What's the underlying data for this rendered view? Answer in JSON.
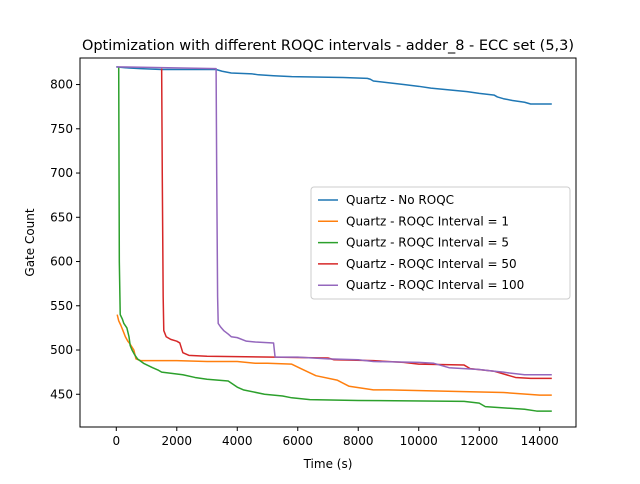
{
  "chart_data": {
    "type": "line",
    "title": "Optimization with different ROQC intervals - adder_8 - ECC set (5,3)",
    "xlabel": "Time (s)",
    "ylabel": "Gate Count",
    "xlim": [
      -1200,
      15200
    ],
    "ylim": [
      413,
      830
    ],
    "xticks": [
      0,
      2000,
      4000,
      6000,
      8000,
      10000,
      12000,
      14000
    ],
    "yticks": [
      450,
      500,
      550,
      600,
      650,
      700,
      750,
      800
    ],
    "grid": false,
    "legend_position": "center-right",
    "series": [
      {
        "name": "Quartz - No ROQC",
        "color": "#1f77b4",
        "points": [
          [
            0,
            820
          ],
          [
            300,
            819
          ],
          [
            800,
            818
          ],
          [
            1500,
            817
          ],
          [
            3300,
            817
          ],
          [
            3500,
            815
          ],
          [
            3800,
            813
          ],
          [
            4500,
            812
          ],
          [
            4700,
            811
          ],
          [
            5200,
            810
          ],
          [
            5800,
            809
          ],
          [
            7500,
            808
          ],
          [
            8300,
            807
          ],
          [
            8400,
            806
          ],
          [
            8500,
            804
          ],
          [
            9000,
            802
          ],
          [
            9500,
            800
          ],
          [
            10000,
            798
          ],
          [
            10400,
            796
          ],
          [
            11000,
            794
          ],
          [
            11600,
            792
          ],
          [
            12000,
            790
          ],
          [
            12500,
            788
          ],
          [
            12600,
            786
          ],
          [
            12800,
            784
          ],
          [
            13100,
            782
          ],
          [
            13500,
            780
          ],
          [
            13700,
            778
          ],
          [
            14400,
            778
          ]
        ]
      },
      {
        "name": "Quartz - ROQC Interval = 1",
        "color": "#ff7f0e",
        "points": [
          [
            30,
            540
          ],
          [
            80,
            533
          ],
          [
            150,
            528
          ],
          [
            220,
            522
          ],
          [
            300,
            515
          ],
          [
            380,
            510
          ],
          [
            450,
            507
          ],
          [
            580,
            500
          ],
          [
            650,
            490
          ],
          [
            800,
            488
          ],
          [
            2000,
            488
          ],
          [
            3000,
            487
          ],
          [
            4000,
            487
          ],
          [
            4600,
            485
          ],
          [
            5000,
            485
          ],
          [
            5800,
            484
          ],
          [
            6100,
            479
          ],
          [
            6600,
            471
          ],
          [
            7300,
            466
          ],
          [
            7700,
            459
          ],
          [
            8500,
            455
          ],
          [
            9000,
            455
          ],
          [
            11500,
            453
          ],
          [
            12800,
            452
          ],
          [
            14000,
            449
          ],
          [
            14400,
            449
          ]
        ]
      },
      {
        "name": "Quartz - ROQC Interval = 5",
        "color": "#2ca02c",
        "points": [
          [
            80,
            820
          ],
          [
            100,
            600
          ],
          [
            130,
            540
          ],
          [
            200,
            535
          ],
          [
            250,
            530
          ],
          [
            350,
            525
          ],
          [
            420,
            515
          ],
          [
            460,
            505
          ],
          [
            520,
            500
          ],
          [
            600,
            495
          ],
          [
            700,
            490
          ],
          [
            900,
            485
          ],
          [
            1200,
            480
          ],
          [
            1400,
            477
          ],
          [
            1500,
            475
          ],
          [
            2200,
            472
          ],
          [
            2600,
            469
          ],
          [
            3000,
            467
          ],
          [
            3700,
            465
          ],
          [
            4000,
            458
          ],
          [
            4200,
            455
          ],
          [
            4900,
            450
          ],
          [
            5500,
            448
          ],
          [
            5800,
            446
          ],
          [
            6400,
            444
          ],
          [
            8000,
            443
          ],
          [
            11500,
            442
          ],
          [
            12000,
            440
          ],
          [
            12200,
            436
          ],
          [
            13500,
            433
          ],
          [
            13900,
            431
          ],
          [
            14400,
            431
          ]
        ]
      },
      {
        "name": "Quartz - ROQC Interval = 50",
        "color": "#d62728",
        "points": [
          [
            1500,
            818
          ],
          [
            1520,
            700
          ],
          [
            1550,
            560
          ],
          [
            1570,
            522
          ],
          [
            1650,
            515
          ],
          [
            1800,
            512
          ],
          [
            2000,
            510
          ],
          [
            2100,
            508
          ],
          [
            2200,
            497
          ],
          [
            2400,
            494
          ],
          [
            3000,
            493
          ],
          [
            5200,
            492
          ],
          [
            7000,
            491
          ],
          [
            7200,
            489
          ],
          [
            8500,
            488
          ],
          [
            9500,
            486
          ],
          [
            10000,
            484
          ],
          [
            11500,
            483
          ],
          [
            11700,
            479
          ],
          [
            12500,
            476
          ],
          [
            12700,
            474
          ],
          [
            13000,
            471
          ],
          [
            13200,
            469
          ],
          [
            13700,
            468
          ],
          [
            14400,
            468
          ]
        ]
      },
      {
        "name": "Quartz - ROQC Interval = 100",
        "color": "#9467bd",
        "points": [
          [
            0,
            820
          ],
          [
            3300,
            818
          ],
          [
            3320,
            700
          ],
          [
            3350,
            560
          ],
          [
            3370,
            530
          ],
          [
            3450,
            526
          ],
          [
            3550,
            522
          ],
          [
            3700,
            518
          ],
          [
            3800,
            515
          ],
          [
            4000,
            514
          ],
          [
            4300,
            510
          ],
          [
            4600,
            509
          ],
          [
            5200,
            508
          ],
          [
            5250,
            492
          ],
          [
            6000,
            492
          ],
          [
            7000,
            490
          ],
          [
            8000,
            489
          ],
          [
            8500,
            487
          ],
          [
            10000,
            486
          ],
          [
            10500,
            485
          ],
          [
            11000,
            480
          ],
          [
            12000,
            478
          ],
          [
            12500,
            476
          ],
          [
            12800,
            475
          ],
          [
            13000,
            474
          ],
          [
            13500,
            472
          ],
          [
            14400,
            472
          ]
        ]
      }
    ]
  }
}
